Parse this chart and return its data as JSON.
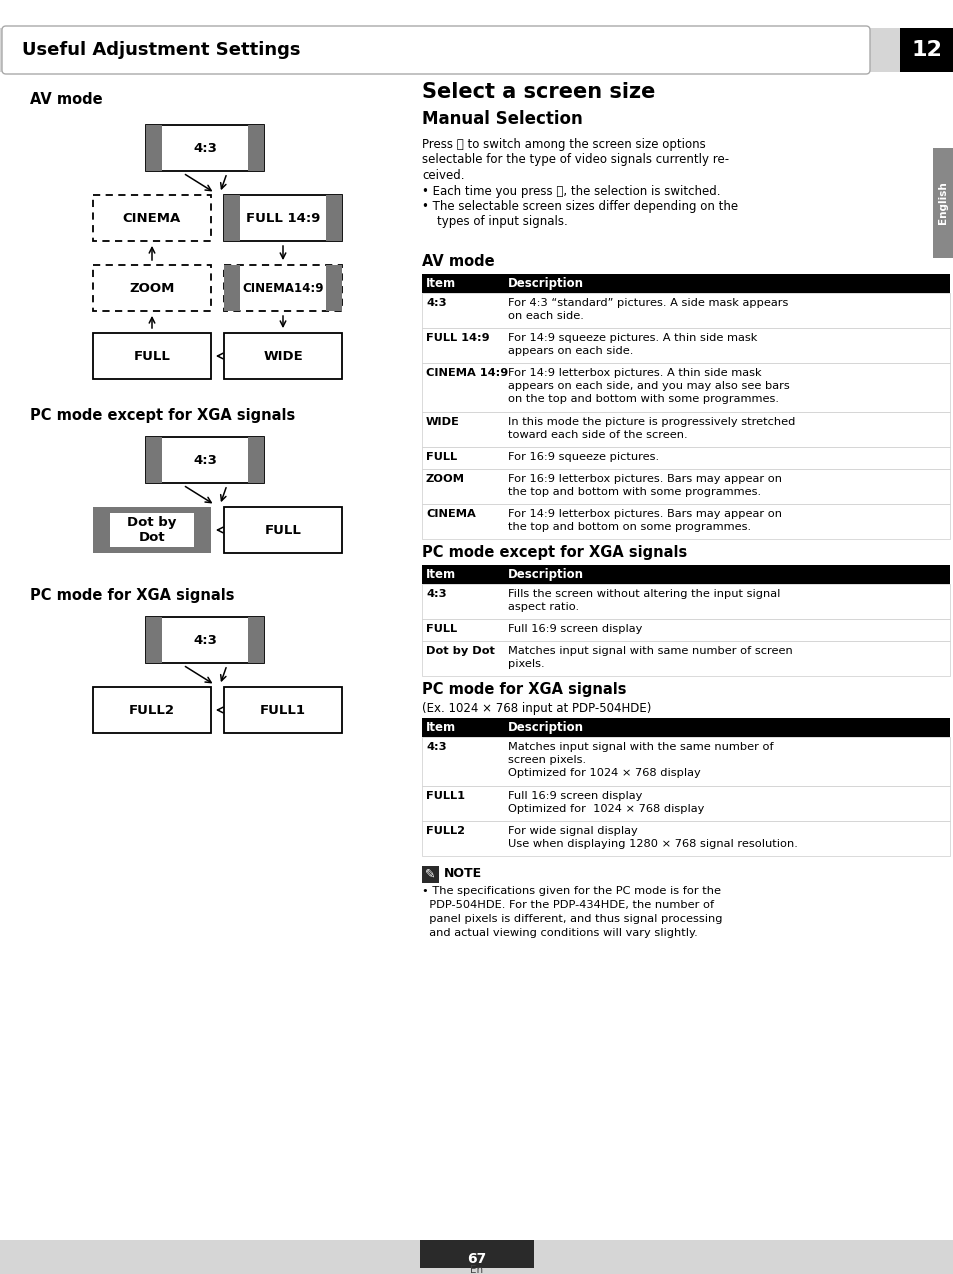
{
  "bg_color": "#ffffff",
  "header_text": "Useful Adjustment Settings",
  "chapter_num": "12",
  "left_title1": "AV mode",
  "left_title2": "PC mode except for XGA signals",
  "left_title3": "PC mode for XGA signals",
  "right_title1": "Select a screen size",
  "right_title2": "Manual Selection",
  "body_lines": [
    "Press ⓡ to switch among the screen size options",
    "selectable for the type of video signals currently re-",
    "ceived.",
    "• Each time you press ⓡ, the selection is switched.",
    "• The selectable screen sizes differ depending on the",
    "    types of input signals."
  ],
  "av_table_rows": [
    [
      "4:3",
      "For 4:3 “standard” pictures. A side mask appears\non each side."
    ],
    [
      "FULL 14:9",
      "For 14:9 squeeze pictures. A thin side mask\nappears on each side."
    ],
    [
      "CINEMA 14:9",
      "For 14:9 letterbox pictures. A thin side mask\nappears on each side, and you may also see bars\non the top and bottom with some programmes."
    ],
    [
      "WIDE",
      "In this mode the picture is progressively stretched\ntoward each side of the screen."
    ],
    [
      "FULL",
      "For 16:9 squeeze pictures."
    ],
    [
      "ZOOM",
      "For 16:9 letterbox pictures. Bars may appear on\nthe top and bottom with some programmes."
    ],
    [
      "CINEMA",
      "For 14:9 letterbox pictures. Bars may appear on\nthe top and bottom on some programmes."
    ]
  ],
  "pc_table_rows": [
    [
      "4:3",
      "Fills the screen without altering the input signal\naspect ratio."
    ],
    [
      "FULL",
      "Full 16:9 screen display"
    ],
    [
      "Dot by Dot",
      "Matches input signal with same number of screen\npixels."
    ]
  ],
  "xga_subtitle": "(Ex. 1024 × 768 input at PDP-504HDE)",
  "xga_table_rows": [
    [
      "4:3",
      "Matches input signal with the same number of\nscreen pixels.\nOptimized for 1024 × 768 display"
    ],
    [
      "FULL1",
      "Full 16:9 screen display\nOptimized for  1024 × 768 display"
    ],
    [
      "FULL2",
      "For wide signal display\nUse when displaying 1280 × 768 signal resolution."
    ]
  ],
  "note_lines": [
    "• The specifications given for the PC mode is for the",
    "  PDP-504HDE. For the PDP-434HDE, the number of",
    "  panel pixels is different, and thus signal processing",
    "  and actual viewing conditions will vary slightly."
  ],
  "page_num": "67",
  "page_lang": "En",
  "gray_bar": "#777777",
  "dashed_color": "#000000",
  "table_header_bg": "#000000",
  "table_header_fg": "#ffffff",
  "table_border": "#cccccc"
}
